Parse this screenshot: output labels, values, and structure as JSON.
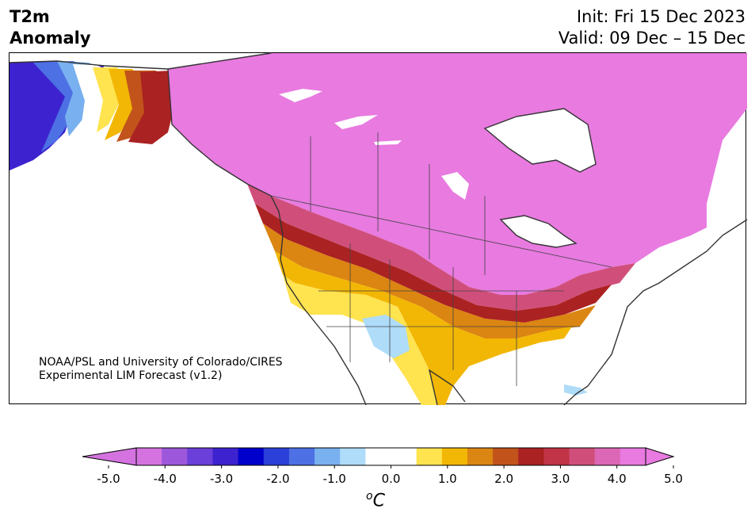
{
  "header": {
    "title_line1": "T2m",
    "title_line2": "Anomaly",
    "init": "Init: Fri 15 Dec 2023",
    "valid": "Valid: 09 Dec – 15 Dec"
  },
  "credit": {
    "line1": "NOAA/PSL and University of Colorado/CIRES",
    "line2": "Experimental LIM Forecast (v1.2)"
  },
  "colorbar": {
    "unit_base": "C",
    "unit_sup": "o",
    "ticks": [
      "-5.0",
      "-4.0",
      "-3.0",
      "-2.0",
      "-1.0",
      "0.0",
      "1.0",
      "2.0",
      "3.0",
      "4.0",
      "5.0"
    ],
    "colors": [
      "#d473e0",
      "#9c57da",
      "#6b3fd9",
      "#3c23cf",
      "#0000cd",
      "#2a40d8",
      "#4d70e4",
      "#79b0ef",
      "#aedcf9",
      "#ffffff",
      "#ffffff",
      "#ffe34f",
      "#f2b705",
      "#db8512",
      "#c1531b",
      "#ab2222",
      "#c13346",
      "#d04f7a",
      "#dc67b6",
      "#e87ae0"
    ]
  },
  "map": {
    "region": "North America",
    "variable": "2 m temperature anomaly"
  }
}
